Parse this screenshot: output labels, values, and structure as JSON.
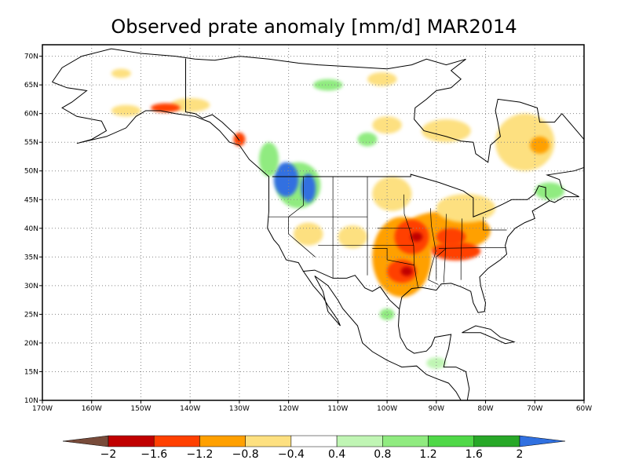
{
  "title": "Observed prate anomaly [mm/d] MAR2014",
  "map": {
    "projection": "equirectangular",
    "lon_range": [
      -170,
      -60
    ],
    "lat_range": [
      10,
      72
    ],
    "grid": "dotted",
    "lon_ticks": [
      {
        "lon": -170,
        "label": "170W"
      },
      {
        "lon": -160,
        "label": "160W"
      },
      {
        "lon": -150,
        "label": "150W"
      },
      {
        "lon": -140,
        "label": "140W"
      },
      {
        "lon": -130,
        "label": "130W"
      },
      {
        "lon": -120,
        "label": "120W"
      },
      {
        "lon": -110,
        "label": "110W"
      },
      {
        "lon": -100,
        "label": "100W"
      },
      {
        "lon": -90,
        "label": "90W"
      },
      {
        "lon": -80,
        "label": "80W"
      },
      {
        "lon": -70,
        "label": "70W"
      },
      {
        "lon": -60,
        "label": "60W"
      }
    ],
    "lat_ticks": [
      {
        "lat": 10,
        "label": "10N"
      },
      {
        "lat": 15,
        "label": "15N"
      },
      {
        "lat": 20,
        "label": "20N"
      },
      {
        "lat": 25,
        "label": "25N"
      },
      {
        "lat": 30,
        "label": "30N"
      },
      {
        "lat": 35,
        "label": "35N"
      },
      {
        "lat": 40,
        "label": "40N"
      },
      {
        "lat": 45,
        "label": "45N"
      },
      {
        "lat": 50,
        "label": "50N"
      },
      {
        "lat": 55,
        "label": "55N"
      },
      {
        "lat": 60,
        "label": "60N"
      },
      {
        "lat": 65,
        "label": "65N"
      },
      {
        "lat": 70,
        "label": "70N"
      }
    ]
  },
  "colorbar": {
    "levels": [
      -2,
      -1.6,
      -1.2,
      -0.8,
      -0.4,
      0.4,
      0.8,
      1.2,
      1.6,
      2
    ],
    "labels": [
      "−2",
      "−1.6",
      "−1.2",
      "−0.8",
      "−0.4",
      "0.4",
      "0.8",
      "1.2",
      "1.6",
      "2"
    ],
    "colors": [
      "#784b3a",
      "#c00000",
      "#ff4000",
      "#ffa000",
      "#fde080",
      "#ffffff",
      "#c0f5b4",
      "#90eb80",
      "#50d848",
      "#28a828",
      "#3070e0"
    ]
  },
  "anomaly_regions": [
    {
      "name": "southern-plains-dry",
      "color": "#ffa000",
      "lon": -97,
      "lat": 35,
      "rx": 6,
      "ry": 7
    },
    {
      "name": "ohio-valley-dry",
      "color": "#ffa000",
      "lon": -88,
      "lat": 39.5,
      "rx": 9,
      "ry": 3.5
    },
    {
      "name": "midwest-dry",
      "color": "#ff4000",
      "lon": -95,
      "lat": 38.5,
      "rx": 3.5,
      "ry": 3
    },
    {
      "name": "tennessee-dry",
      "color": "#ff4000",
      "lon": -86,
      "lat": 36,
      "rx": 5,
      "ry": 1.6
    },
    {
      "name": "texas-dry",
      "color": "#ff4000",
      "lon": -97,
      "lat": 32.5,
      "rx": 3,
      "ry": 2
    },
    {
      "name": "kentucky-dry",
      "color": "#ff4000",
      "lon": -87,
      "lat": 38.5,
      "rx": 3,
      "ry": 1.5
    },
    {
      "name": "arkansas-dry",
      "color": "#c00000",
      "lon": -96,
      "lat": 32.5,
      "rx": 1.2,
      "ry": 0.8
    },
    {
      "name": "missouri-dry",
      "color": "#c00000",
      "lon": -94,
      "lat": 38.5,
      "rx": 1.2,
      "ry": 0.8
    },
    {
      "name": "great-lakes-dry",
      "color": "#fde080",
      "lon": -84,
      "lat": 43.5,
      "rx": 6,
      "ry": 2.5
    },
    {
      "name": "dakotas-dry",
      "color": "#fde080",
      "lon": -99,
      "lat": 46,
      "rx": 4,
      "ry": 3
    },
    {
      "name": "central-rockies-dry",
      "color": "#fde080",
      "lon": -107,
      "lat": 38.5,
      "rx": 3,
      "ry": 2
    },
    {
      "name": "great-basin-dry",
      "color": "#fde080",
      "lon": -116,
      "lat": 39,
      "rx": 3,
      "ry": 2
    },
    {
      "name": "quebec-dry",
      "color": "#fde080",
      "lon": -72,
      "lat": 55,
      "rx": 6,
      "ry": 5
    },
    {
      "name": "labrador-dry",
      "color": "#ffa000",
      "lon": -69,
      "lat": 54.5,
      "rx": 2,
      "ry": 1.5
    },
    {
      "name": "hudson-bay-dry",
      "color": "#fde080",
      "lon": -88,
      "lat": 57,
      "rx": 5,
      "ry": 2
    },
    {
      "name": "manitoba-dry",
      "color": "#fde080",
      "lon": -100,
      "lat": 58,
      "rx": 3,
      "ry": 1.5
    },
    {
      "name": "nunavut-dry",
      "color": "#fde080",
      "lon": -101,
      "lat": 66,
      "rx": 3,
      "ry": 1.2
    },
    {
      "name": "yukon-dry",
      "color": "#fde080",
      "lon": -140,
      "lat": 61.5,
      "rx": 4,
      "ry": 1.2
    },
    {
      "name": "alaska-west-dry",
      "color": "#fde080",
      "lon": -153,
      "lat": 60.5,
      "rx": 3,
      "ry": 1
    },
    {
      "name": "alaska-north-dry",
      "color": "#fde080",
      "lon": -154,
      "lat": 67,
      "rx": 2,
      "ry": 0.8
    },
    {
      "name": "alaska-gulf-dry",
      "color": "#ff4000",
      "lon": -145,
      "lat": 61,
      "rx": 3,
      "ry": 0.8
    },
    {
      "name": "bc-coast-dry",
      "color": "#ff4000",
      "lon": -130,
      "lat": 55.5,
      "rx": 1.2,
      "ry": 1.2
    },
    {
      "name": "pacific-northwest-wet",
      "color": "#90eb80",
      "lon": -118,
      "lat": 47.5,
      "rx": 4.5,
      "ry": 4
    },
    {
      "name": "washington-wet",
      "color": "#3070e0",
      "lon": -120.5,
      "lat": 48.5,
      "rx": 2.5,
      "ry": 3
    },
    {
      "name": "idaho-wet",
      "color": "#3070e0",
      "lon": -116,
      "lat": 47,
      "rx": 1.5,
      "ry": 2.5
    },
    {
      "name": "bc-interior-wet",
      "color": "#90eb80",
      "lon": -124,
      "lat": 52,
      "rx": 2,
      "ry": 3
    },
    {
      "name": "hudson-wet",
      "color": "#90eb80",
      "lon": -104,
      "lat": 55.5,
      "rx": 2,
      "ry": 1.2
    },
    {
      "name": "arctic-wet",
      "color": "#90eb80",
      "lon": -112,
      "lat": 65,
      "rx": 3,
      "ry": 1
    },
    {
      "name": "northeast-wet",
      "color": "#90eb80",
      "lon": -67,
      "lat": 46.5,
      "rx": 3,
      "ry": 1.5
    },
    {
      "name": "mexico-wet",
      "color": "#90eb80",
      "lon": -100,
      "lat": 25,
      "rx": 1.5,
      "ry": 1
    },
    {
      "name": "central-america-wet",
      "color": "#c0f5b4",
      "lon": -90,
      "lat": 16.5,
      "rx": 2,
      "ry": 1
    }
  ]
}
